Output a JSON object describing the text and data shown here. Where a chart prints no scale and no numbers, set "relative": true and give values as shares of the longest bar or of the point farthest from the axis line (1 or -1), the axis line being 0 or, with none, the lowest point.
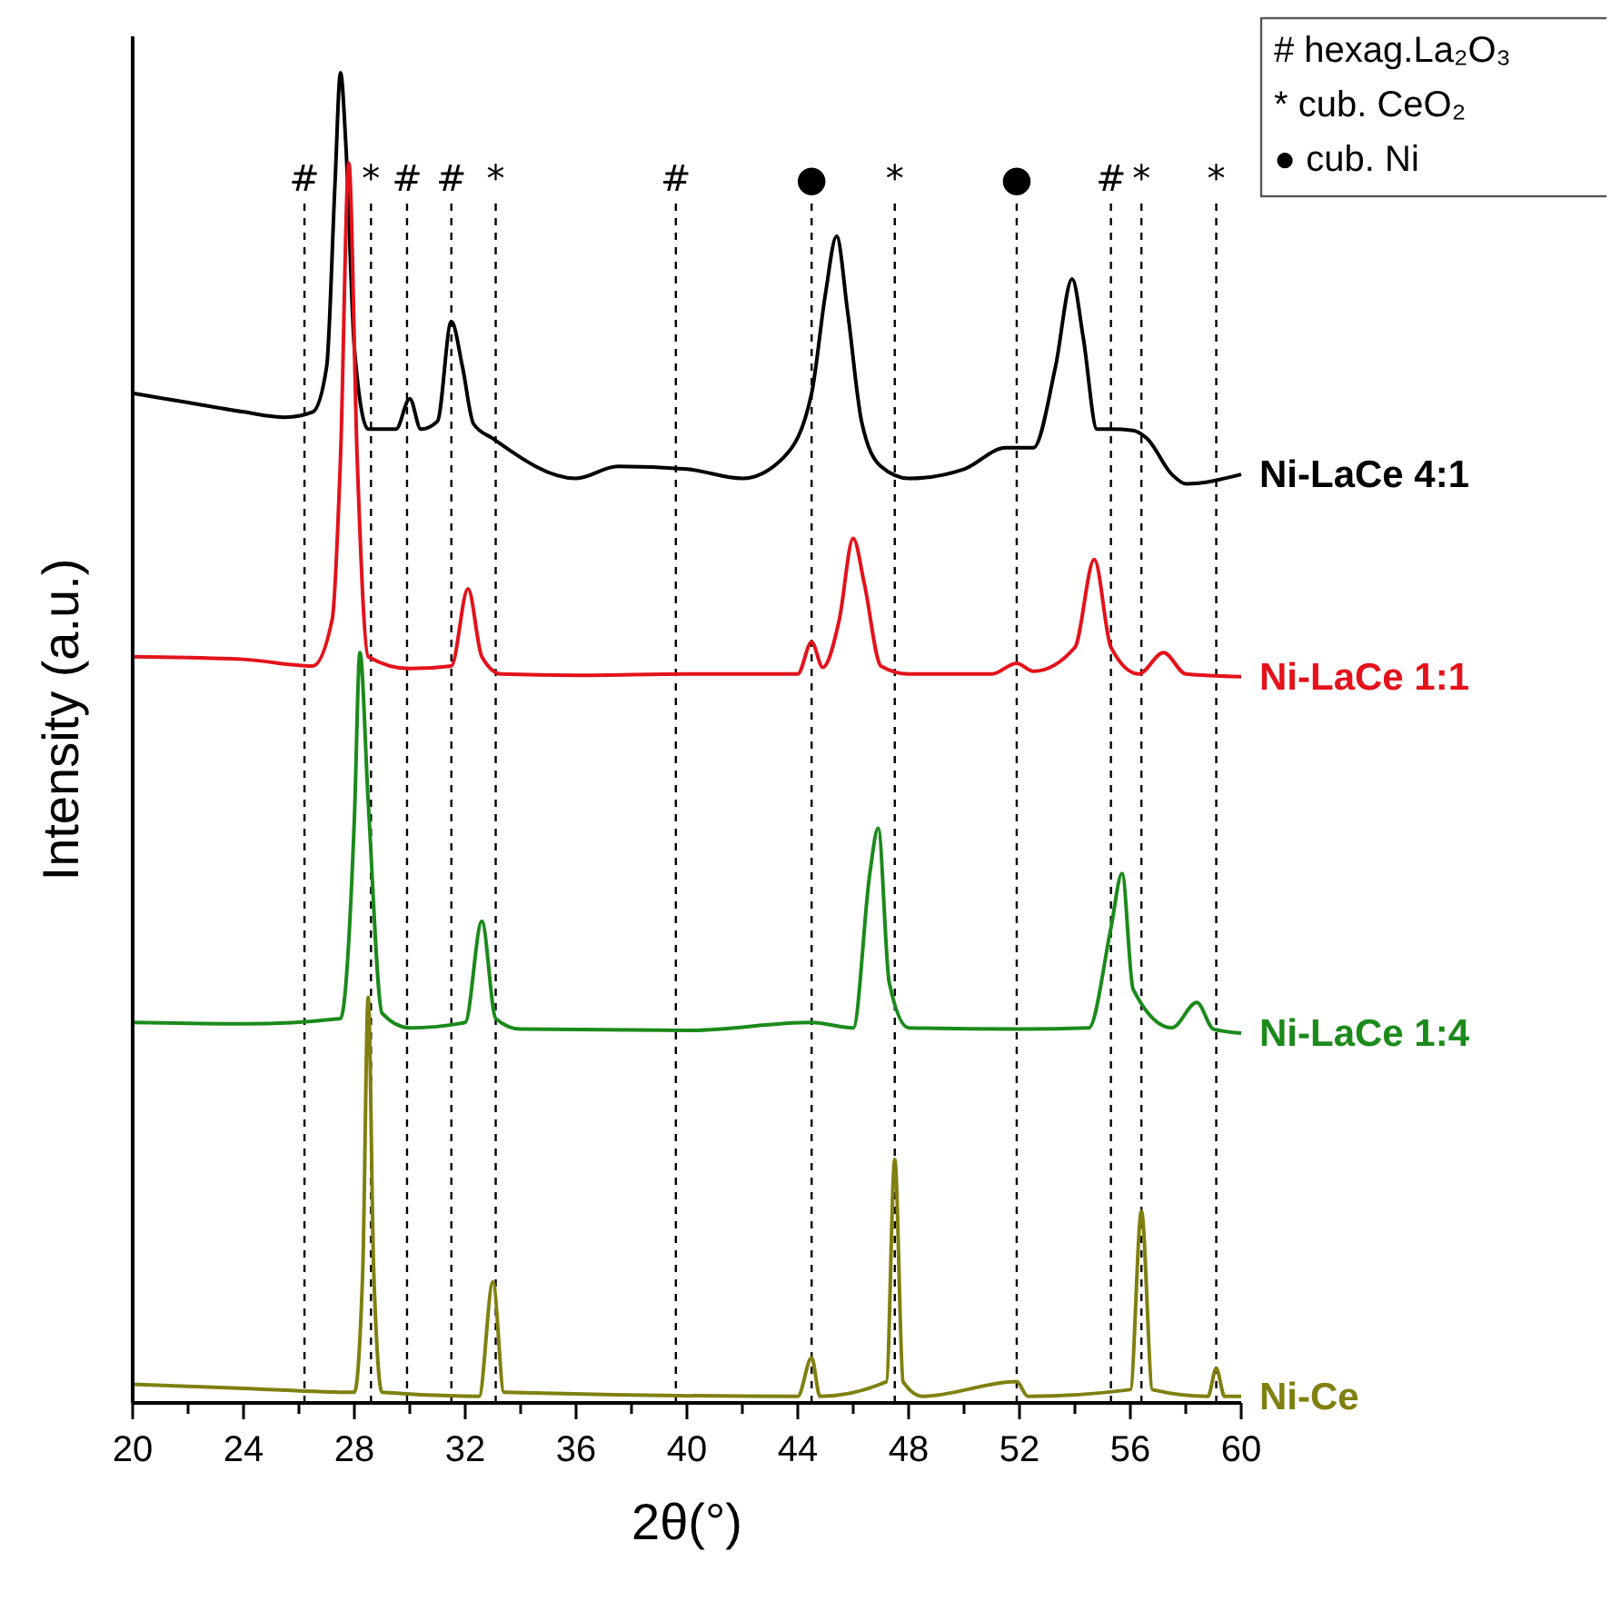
{
  "chart_data": {
    "type": "line",
    "relative": true,
    "xlabel": "2θ(°)",
    "ylabel": "Intensity (a.u.)",
    "xlim": [
      20,
      60
    ],
    "xticks": [
      20,
      {
        "value": 22,
        "label": null
      },
      24,
      {
        "value": 26,
        "label": null
      },
      28,
      {
        "value": 30,
        "label": null
      },
      32,
      {
        "value": 34,
        "label": null
      },
      36,
      {
        "value": 38,
        "label": null
      },
      40,
      {
        "value": 42,
        "label": null
      },
      44,
      {
        "value": 46,
        "label": null
      },
      48,
      {
        "value": 50,
        "label": null
      },
      52,
      {
        "value": 54,
        "label": null
      },
      56,
      {
        "value": 58,
        "label": null
      },
      60
    ],
    "series": [
      {
        "name": "Ni-LaCe 4:1",
        "color": "#000000",
        "x": [
          20,
          22,
          24,
          25.5,
          26.5,
          27,
          27.3,
          27.5,
          27.7,
          28,
          28.5,
          29.5,
          30,
          30.4,
          31,
          31.5,
          31.9,
          32.3,
          33,
          36,
          37.5,
          40,
          42,
          43.5,
          44.5,
          45,
          45.4,
          45.8,
          46.3,
          47,
          48,
          50,
          51.5,
          52.5,
          53.3,
          53.9,
          54.3,
          54.8,
          55.3,
          56.1,
          56.6,
          57.5,
          58,
          60
        ],
        "values": [
          0.759,
          0.752,
          0.745,
          0.741,
          0.745,
          0.779,
          0.916,
          1.0,
          0.943,
          0.793,
          0.732,
          0.732,
          0.755,
          0.732,
          0.738,
          0.813,
          0.779,
          0.736,
          0.725,
          0.695,
          0.704,
          0.702,
          0.695,
          0.711,
          0.759,
          0.834,
          0.877,
          0.82,
          0.738,
          0.704,
          0.695,
          0.702,
          0.718,
          0.718,
          0.779,
          0.845,
          0.801,
          0.732,
          0.732,
          0.731,
          0.725,
          0.698,
          0.691,
          0.698
        ]
      },
      {
        "name": "Ni-LaCe 1:1",
        "color": "#e3121b",
        "x": [
          20,
          24,
          26.5,
          27.2,
          27.5,
          27.8,
          28.1,
          28.5,
          30,
          31.5,
          32.1,
          32.6,
          33.3,
          36,
          40,
          44,
          44.5,
          44.9,
          45.5,
          46,
          46.4,
          47,
          48,
          51,
          51.9,
          52.5,
          54,
          54.7,
          55.3,
          56.3,
          57.2,
          58,
          60
        ],
        "values": [
          0.561,
          0.559,
          0.554,
          0.589,
          0.711,
          0.932,
          0.711,
          0.561,
          0.552,
          0.554,
          0.612,
          0.561,
          0.548,
          0.547,
          0.548,
          0.548,
          0.572,
          0.553,
          0.589,
          0.65,
          0.616,
          0.554,
          0.548,
          0.548,
          0.556,
          0.55,
          0.568,
          0.634,
          0.568,
          0.548,
          0.564,
          0.548,
          0.546
        ]
      },
      {
        "name": "Ni-LaCe 1:4",
        "color": "#1b8a1b",
        "x": [
          20,
          24,
          27.5,
          28,
          28.2,
          28.5,
          29,
          30,
          32,
          32.6,
          33.1,
          34,
          40,
          44.5,
          46,
          46.6,
          46.9,
          47.3,
          48,
          52,
          54.5,
          55.3,
          55.7,
          56.1,
          57.5,
          58.4,
          59,
          60
        ],
        "values": [
          0.286,
          0.285,
          0.289,
          0.439,
          0.564,
          0.452,
          0.293,
          0.282,
          0.286,
          0.362,
          0.289,
          0.281,
          0.28,
          0.286,
          0.282,
          0.398,
          0.432,
          0.316,
          0.282,
          0.281,
          0.282,
          0.357,
          0.398,
          0.311,
          0.282,
          0.301,
          0.281,
          0.278
        ]
      },
      {
        "name": "Ni-Ce",
        "color": "#808010",
        "x": [
          20,
          24,
          28,
          28.3,
          28.5,
          28.7,
          29,
          32.5,
          33,
          33.4,
          44,
          44.5,
          44.8,
          47.2,
          47.5,
          47.8,
          48.5,
          51.9,
          52.3,
          56,
          56.4,
          56.8,
          58.8,
          59.1,
          59.4,
          60
        ],
        "values": [
          0.014,
          0.011,
          0.008,
          0.098,
          0.305,
          0.098,
          0.008,
          0.005,
          0.091,
          0.008,
          0.005,
          0.034,
          0.005,
          0.016,
          0.183,
          0.016,
          0.005,
          0.016,
          0.005,
          0.01,
          0.144,
          0.01,
          0.005,
          0.026,
          0.005,
          0.005
        ]
      }
    ],
    "ref_lines": [
      {
        "axis": "x",
        "value": 26.2,
        "label": "#",
        "line_style": "dashed"
      },
      {
        "axis": "x",
        "value": 28.6,
        "label": "*",
        "line_style": "dashed"
      },
      {
        "axis": "x",
        "value": 29.9,
        "label": "#",
        "line_style": "dashed"
      },
      {
        "axis": "x",
        "value": 31.5,
        "label": "#",
        "line_style": "dashed"
      },
      {
        "axis": "x",
        "value": 33.1,
        "label": "*",
        "line_style": "dashed"
      },
      {
        "axis": "x",
        "value": 39.6,
        "label": "#",
        "line_style": "dashed"
      },
      {
        "axis": "x",
        "value": 44.5,
        "label": "●",
        "line_style": "dashed"
      },
      {
        "axis": "x",
        "value": 47.5,
        "label": "*",
        "line_style": "dashed"
      },
      {
        "axis": "x",
        "value": 51.9,
        "label": "●",
        "line_style": "dashed"
      },
      {
        "axis": "x",
        "value": 55.3,
        "label": "#",
        "line_style": "dashed"
      },
      {
        "axis": "x",
        "value": 56.4,
        "label": "*",
        "line_style": "dashed"
      },
      {
        "axis": "x",
        "value": 59.1,
        "label": "*",
        "line_style": "dashed"
      }
    ],
    "annotations": [
      "# hexag.La₂O₃",
      "* cub. CeO₂",
      "● cub. Ni"
    ]
  }
}
